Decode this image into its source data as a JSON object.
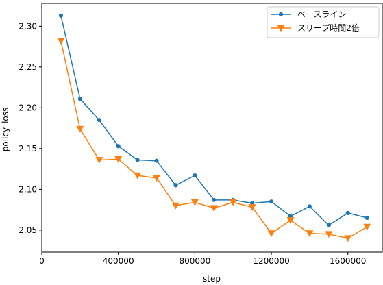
{
  "chart_data": {
    "type": "line",
    "title": "",
    "xlabel": "step",
    "ylabel": "policy_loss",
    "xlim": [
      0,
      1780000
    ],
    "ylim": [
      2.023,
      2.328
    ],
    "xticks": [
      0,
      400000,
      800000,
      1200000,
      1600000
    ],
    "xtick_labels": [
      "0",
      "400000",
      "800000",
      "1200000",
      "1600000"
    ],
    "yticks": [
      2.05,
      2.1,
      2.15,
      2.2,
      2.25,
      2.3
    ],
    "ytick_labels": [
      "2.05",
      "2.10",
      "2.15",
      "2.20",
      "2.25",
      "2.30"
    ],
    "grid": false,
    "legend_position": "top-right",
    "x": [
      100000,
      200000,
      300000,
      400000,
      500000,
      600000,
      700000,
      800000,
      900000,
      1000000,
      1100000,
      1200000,
      1300000,
      1400000,
      1500000,
      1600000,
      1700000
    ],
    "series": [
      {
        "name": "ベースライン",
        "color": "#1f77b4",
        "marker": "circle",
        "values": [
          2.313,
          2.211,
          2.185,
          2.153,
          2.136,
          2.135,
          2.105,
          2.117,
          2.087,
          2.087,
          2.083,
          2.085,
          2.067,
          2.079,
          2.056,
          2.071,
          2.065
        ]
      },
      {
        "name": "スリープ時間2倍",
        "color": "#ff7f0e",
        "marker": "triangle-down",
        "values": [
          2.282,
          2.174,
          2.136,
          2.137,
          2.117,
          2.114,
          2.08,
          2.084,
          2.077,
          2.084,
          2.078,
          2.046,
          2.062,
          2.046,
          2.045,
          2.04,
          2.054
        ]
      }
    ]
  }
}
